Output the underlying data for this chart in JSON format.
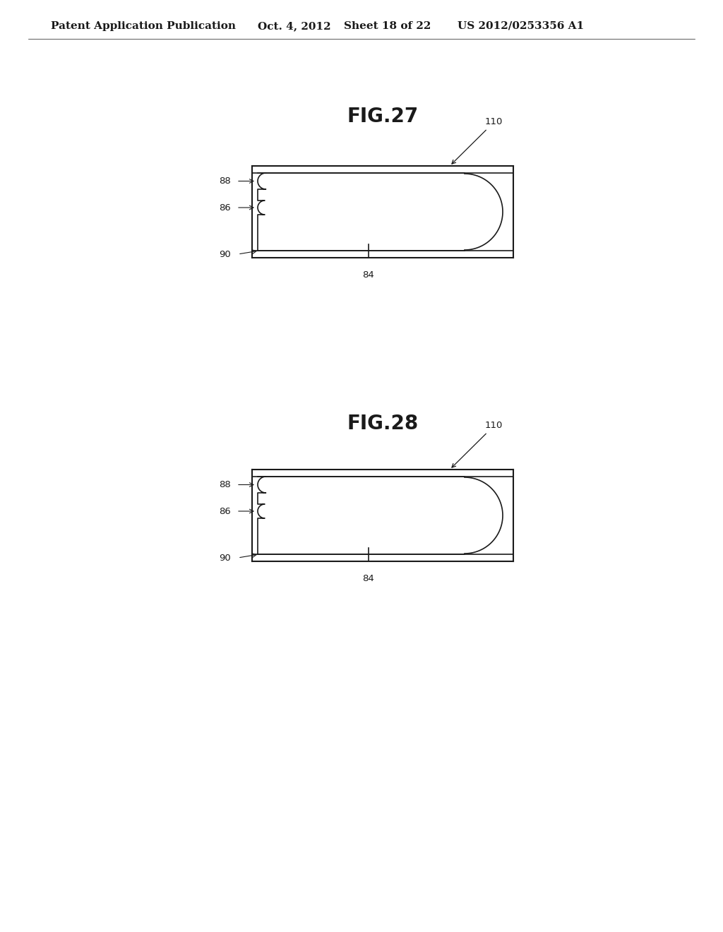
{
  "background_color": "#ffffff",
  "header_text": "Patent Application Publication",
  "header_date": "Oct. 4, 2012",
  "header_sheet": "Sheet 18 of 22",
  "header_patent": "US 2012/0253356 A1",
  "fig27_title": "FIG.27",
  "fig28_title": "FIG.28",
  "line_color": "#1a1a1a",
  "label_fontsize": 9.5,
  "title_fontsize": 20,
  "header_fontsize": 11
}
